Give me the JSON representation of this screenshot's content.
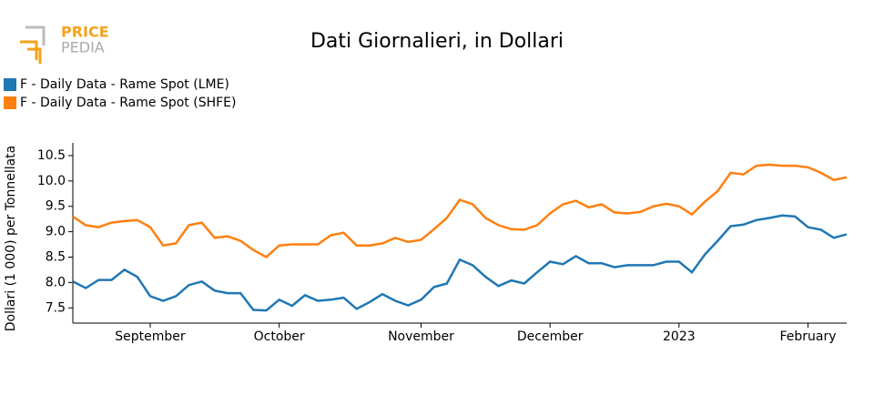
{
  "logo": {
    "line1": "PRICE",
    "line2": "PEDIA"
  },
  "chart_data": {
    "type": "line",
    "title": "Dati Giornalieri, in Dollari",
    "y_label": "Dollari (1 000) per Tonnellata",
    "categories": [
      null,
      null,
      null,
      null,
      null,
      null,
      "September",
      null,
      null,
      null,
      null,
      null,
      null,
      null,
      null,
      null,
      "October",
      null,
      null,
      null,
      null,
      null,
      null,
      null,
      null,
      null,
      null,
      "November",
      null,
      null,
      null,
      null,
      null,
      null,
      null,
      null,
      null,
      "December",
      null,
      null,
      null,
      null,
      null,
      null,
      null,
      null,
      null,
      "2023",
      null,
      null,
      null,
      null,
      null,
      null,
      null,
      null,
      null,
      "February",
      null,
      null,
      null
    ],
    "series": [
      {
        "name": "F - Daily Data - Rame Spot (LME)",
        "color": "#1f77b4",
        "values": [
          8.02,
          7.89,
          8.05,
          8.05,
          8.25,
          8.11,
          7.73,
          7.64,
          7.73,
          7.95,
          8.02,
          7.84,
          7.79,
          7.79,
          7.46,
          7.45,
          7.66,
          7.54,
          7.75,
          7.64,
          7.66,
          7.7,
          7.48,
          7.61,
          7.77,
          7.64,
          7.55,
          7.66,
          7.91,
          7.98,
          8.45,
          8.34,
          8.11,
          7.93,
          8.04,
          7.98,
          8.2,
          8.41,
          8.36,
          8.52,
          8.38,
          8.38,
          8.3,
          8.34,
          8.34,
          8.34,
          8.41,
          8.41,
          8.2,
          8.55,
          8.82,
          9.11,
          9.14,
          9.23,
          9.27,
          9.32,
          9.3,
          9.09,
          9.04,
          8.88,
          8.95
        ]
      },
      {
        "name": "F - Daily Data - Rame Spot (SHFE)",
        "color": "#ff7f0e",
        "values": [
          9.3,
          9.13,
          9.09,
          9.18,
          9.21,
          9.23,
          9.09,
          8.73,
          8.77,
          9.13,
          9.18,
          8.88,
          8.91,
          8.82,
          8.64,
          8.5,
          8.73,
          8.75,
          8.75,
          8.75,
          8.93,
          8.98,
          8.73,
          8.73,
          8.77,
          8.88,
          8.8,
          8.84,
          9.05,
          9.27,
          9.63,
          9.54,
          9.27,
          9.13,
          9.05,
          9.04,
          9.13,
          9.36,
          9.54,
          9.61,
          9.48,
          9.54,
          9.38,
          9.36,
          9.39,
          9.5,
          9.55,
          9.5,
          9.34,
          9.59,
          9.8,
          10.16,
          10.13,
          10.3,
          10.32,
          10.3,
          10.3,
          10.27,
          10.16,
          10.02,
          10.07
        ]
      }
    ],
    "ylim": [
      7.2,
      10.75
    ],
    "yticks": [
      7.5,
      {
        "value": 8,
        "label": "8.0"
      },
      8.5,
      {
        "value": 9,
        "label": "9.0"
      },
      9.5,
      {
        "value": 10,
        "label": "10.0"
      },
      10.5
    ],
    "legend": "top-left"
  }
}
